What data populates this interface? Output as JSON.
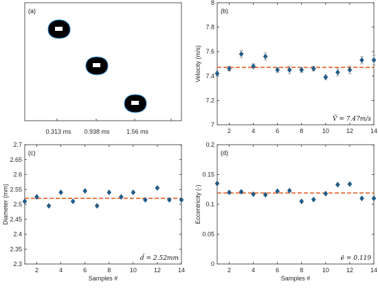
{
  "panel_a": {
    "label": "(a)",
    "time_labels": [
      "0.313 ms",
      "0.938 ms",
      "1.56 ms"
    ]
  },
  "chart_data": [
    {
      "type": "scatter",
      "panel_label": "(b)",
      "xlabel": "",
      "ylabel": "Velocity (m/s)",
      "xlim": [
        1,
        14
      ],
      "ylim": [
        7,
        8
      ],
      "xticks": [
        2,
        4,
        6,
        8,
        10,
        12,
        14
      ],
      "yticks": [
        7,
        7.2,
        7.4,
        7.6,
        7.8,
        8
      ],
      "ytick_labels": [
        "7",
        "7.2",
        "7.4",
        "7.6",
        "7.8",
        "8"
      ],
      "x": [
        1,
        2,
        3,
        4,
        5,
        6,
        7,
        8,
        9,
        10,
        11,
        12,
        13,
        14
      ],
      "y": [
        7.42,
        7.46,
        7.58,
        7.48,
        7.56,
        7.45,
        7.45,
        7.45,
        7.46,
        7.39,
        7.43,
        7.45,
        7.53,
        7.53
      ],
      "error": [
        0.02,
        0.02,
        0.03,
        0.02,
        0.03,
        0.02,
        0.03,
        0.02,
        0.02,
        0.02,
        0.03,
        0.03,
        0.03,
        0.04
      ],
      "mean": 7.47,
      "annotation": "V̄ = 7.47m/s",
      "marker_color": "#1f5f8f",
      "mean_color": "#e05a1e",
      "grid": false
    },
    {
      "type": "scatter",
      "panel_label": "(c)",
      "xlabel": "Samples #",
      "ylabel": "Diameter (mm)",
      "xlim": [
        1,
        14
      ],
      "ylim": [
        2.3,
        2.7
      ],
      "xticks": [
        2,
        4,
        6,
        8,
        10,
        12,
        14
      ],
      "yticks": [
        2.3,
        2.35,
        2.4,
        2.45,
        2.5,
        2.55,
        2.6,
        2.65,
        2.7
      ],
      "ytick_labels": [
        "2.3",
        "2.35",
        "2.4",
        "2.45",
        "2.5",
        "2.55",
        "2.6",
        "2.65",
        "2.7"
      ],
      "x": [
        1,
        2,
        3,
        4,
        5,
        6,
        7,
        8,
        9,
        10,
        11,
        12,
        13,
        14
      ],
      "y": [
        2.51,
        2.525,
        2.495,
        2.54,
        2.51,
        2.545,
        2.495,
        2.54,
        2.525,
        2.54,
        2.515,
        2.555,
        2.515,
        2.515
      ],
      "mean": 2.52,
      "annotation": "d̄ = 2.52mm",
      "marker_color": "#1f5f8f",
      "mean_color": "#e05a1e",
      "grid": false
    },
    {
      "type": "scatter",
      "panel_label": "(d)",
      "xlabel": "Samples #",
      "ylabel": "Eccentricity (-)",
      "xlim": [
        1,
        14
      ],
      "ylim": [
        0,
        0.2
      ],
      "xticks": [
        2,
        4,
        6,
        8,
        10,
        12,
        14
      ],
      "yticks": [
        0,
        0.05,
        0.1,
        0.15,
        0.2
      ],
      "ytick_labels": [
        "0",
        "0.05",
        "0.1",
        "0.15",
        "0.2"
      ],
      "x": [
        1,
        2,
        3,
        4,
        5,
        6,
        7,
        8,
        9,
        10,
        11,
        12,
        13,
        14
      ],
      "y": [
        0.135,
        0.12,
        0.121,
        0.117,
        0.116,
        0.122,
        0.123,
        0.105,
        0.108,
        0.118,
        0.133,
        0.134,
        0.11,
        0.11
      ],
      "mean": 0.119,
      "annotation": "ē = 0.119",
      "marker_color": "#1f5f8f",
      "mean_color": "#e05a1e",
      "grid": false
    }
  ]
}
